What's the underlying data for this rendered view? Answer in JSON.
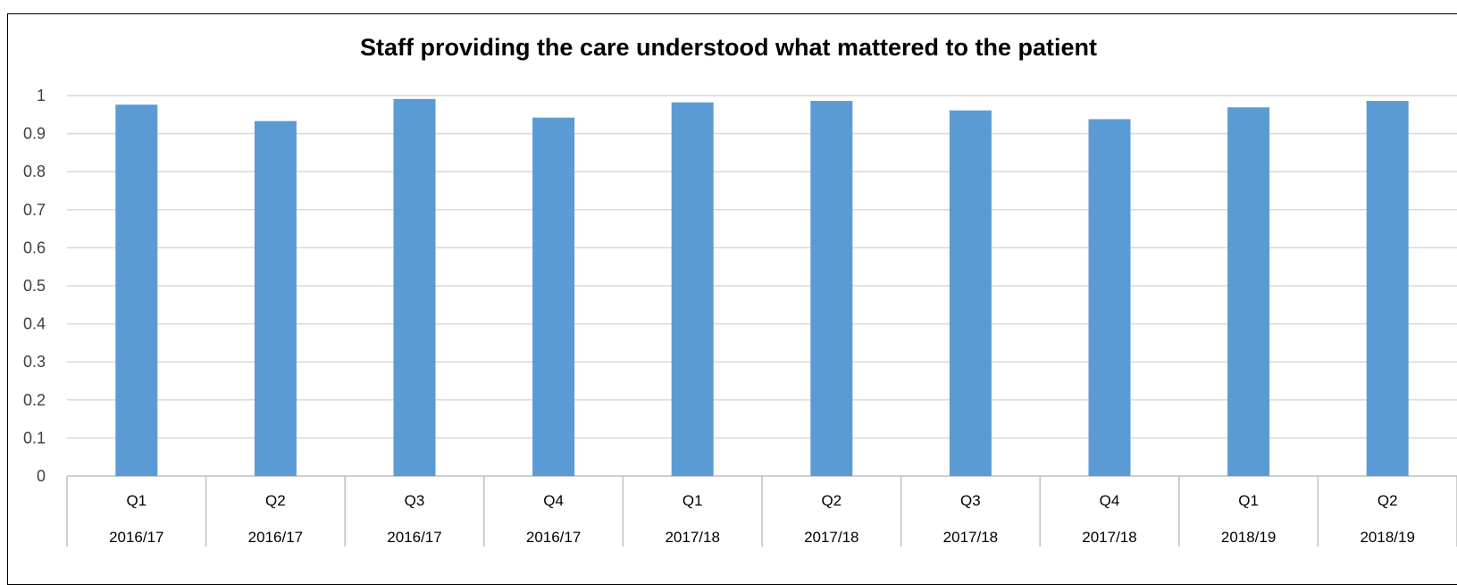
{
  "chart_data": {
    "type": "bar",
    "title": "Staff providing the care understood what mattered to the patient",
    "categories": [
      {
        "quarter": "Q1",
        "year": "2016/17"
      },
      {
        "quarter": "Q2",
        "year": "2016/17"
      },
      {
        "quarter": "Q3",
        "year": "2016/17"
      },
      {
        "quarter": "Q4",
        "year": "2016/17"
      },
      {
        "quarter": "Q1",
        "year": "2017/18"
      },
      {
        "quarter": "Q2",
        "year": "2017/18"
      },
      {
        "quarter": "Q3",
        "year": "2017/18"
      },
      {
        "quarter": "Q4",
        "year": "2017/18"
      },
      {
        "quarter": "Q1",
        "year": "2018/19"
      },
      {
        "quarter": "Q2",
        "year": "2018/19"
      }
    ],
    "series": [
      {
        "values": [
          0.976,
          0.933,
          0.991,
          0.942,
          0.982,
          0.986,
          0.961,
          0.938,
          0.969,
          0.986
        ]
      }
    ],
    "ylim": [
      0,
      1
    ],
    "yticks": [
      "0",
      "0.1",
      "0.2",
      "0.3",
      "0.4",
      "0.5",
      "0.6",
      "0.7",
      "0.8",
      "0.9",
      "1"
    ],
    "xlabel": "",
    "ylabel": "",
    "grid": true,
    "colors": {
      "bar": "#5b9bd5",
      "grid": "#d9d9d9",
      "axis": "#bfbfbf"
    }
  }
}
